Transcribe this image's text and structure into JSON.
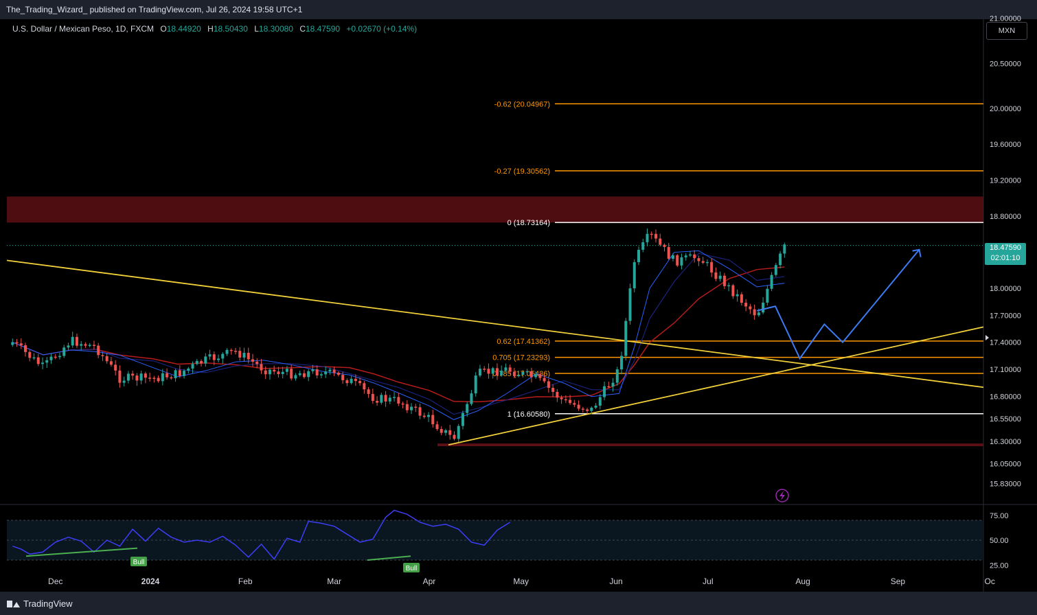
{
  "header": {
    "publish_line": "The_Trading_Wizard_ published on TradingView.com, Jul 26, 2024 19:58 UTC+1",
    "symbol": "U.S. Dollar / Mexican Peso, 1D, FXCM",
    "ohlc": {
      "O": "18.44920",
      "H": "18.50430",
      "L": "18.30080",
      "C": "18.47590",
      "change": "+0.02670 (+0.14%)"
    },
    "currency_button": "MXN"
  },
  "price_label": {
    "value": "18.47590",
    "countdown": "02:01:10"
  },
  "footer": {
    "brand": "TradingView"
  },
  "colors": {
    "up": "#26a69a",
    "down": "#ef5350",
    "fib_orange": "#ff9800",
    "fib_white": "#ffffff",
    "trendline": "#f2d13a",
    "ma_dark_blue": "#1a237e",
    "ma_blue": "#2962ff",
    "ma_red": "#b71c1c",
    "projection": "#3d7bf5",
    "rsi": "#3d3df5",
    "zone": "#5c0f14"
  },
  "chart_data": {
    "type": "candlestick",
    "title": "U.S. Dollar / Mexican Peso, 1D, FXCM",
    "ylim": [
      15.7,
      21.2
    ],
    "y_ticks": [
      "21.00000",
      "20.50000",
      "20.00000",
      "19.60000",
      "19.20000",
      "18.80000",
      "18.00000",
      "17.70000",
      "17.40000",
      "17.10000",
      "16.80000",
      "16.55000",
      "16.30000",
      "16.05000",
      "15.83000"
    ],
    "x_ticks": [
      "Dec",
      "2024",
      "Feb",
      "Mar",
      "Apr",
      "May",
      "Jun",
      "Jul",
      "Aug",
      "Sep",
      "Oc"
    ],
    "last_price": 18.4759,
    "fib_levels": [
      {
        "label": "-0.62 (20.04967)",
        "value": 20.04967
      },
      {
        "label": "-0.27 (19.30562)",
        "value": 19.30562
      },
      {
        "label": "0 (18.73164)",
        "value": 18.73164
      },
      {
        "label": "0.62 (17.41362)",
        "value": 17.41362
      },
      {
        "label": "0.705 (17.23293)",
        "value": 17.23293
      },
      {
        "label": "0.785 (17.05436)",
        "value": 17.05436
      },
      {
        "label": "1 (16.60580)",
        "value": 16.6058
      }
    ],
    "resistance_zone": [
      18.73,
      19.02
    ],
    "support_level": 16.26,
    "close_path": [
      [
        "2023-11-17",
        17.4
      ],
      [
        "2023-11-27",
        17.12
      ],
      [
        "2023-12-06",
        17.42
      ],
      [
        "2023-12-14",
        17.35
      ],
      [
        "2023-12-22",
        17.0
      ],
      [
        "2024-01-02",
        17.0
      ],
      [
        "2024-01-10",
        17.05
      ],
      [
        "2024-01-19",
        17.2
      ],
      [
        "2024-01-29",
        17.3
      ],
      [
        "2024-02-07",
        17.1
      ],
      [
        "2024-02-16",
        17.05
      ],
      [
        "2024-02-26",
        17.08
      ],
      [
        "2024-03-06",
        16.98
      ],
      [
        "2024-03-14",
        16.78
      ],
      [
        "2024-03-22",
        16.75
      ],
      [
        "2024-04-01",
        16.55
      ],
      [
        "2024-04-09",
        16.32
      ],
      [
        "2024-04-17",
        17.05
      ],
      [
        "2024-04-26",
        17.1
      ],
      [
        "2024-05-06",
        17.0
      ],
      [
        "2024-05-15",
        16.74
      ],
      [
        "2024-05-24",
        16.65
      ],
      [
        "2024-06-02",
        17.1
      ],
      [
        "2024-06-07",
        18.3
      ],
      [
        "2024-06-12",
        18.6
      ],
      [
        "2024-06-20",
        18.3
      ],
      [
        "2024-06-28",
        18.35
      ],
      [
        "2024-07-08",
        18.0
      ],
      [
        "2024-07-17",
        17.7
      ],
      [
        "2024-07-26",
        18.47
      ]
    ],
    "projection_path": [
      [
        "2024-07-17",
        17.75
      ],
      [
        "2024-07-23",
        17.8
      ],
      [
        "2024-07-31",
        17.22
      ],
      [
        "2024-08-08",
        17.6
      ],
      [
        "2024-08-14",
        17.4
      ],
      [
        "2024-09-08",
        18.43
      ]
    ],
    "rsi": {
      "levels": [
        70,
        50,
        30
      ],
      "y_ticks": [
        "75.00",
        "50.00",
        "25.00"
      ],
      "labels": [
        "Bull",
        "Bull"
      ],
      "values": [
        [
          0,
          44
        ],
        [
          2,
          41
        ],
        [
          4,
          36
        ],
        [
          7,
          38
        ],
        [
          10,
          48
        ],
        [
          13,
          53
        ],
        [
          16,
          49
        ],
        [
          19,
          38
        ],
        [
          22,
          50
        ],
        [
          25,
          44
        ],
        [
          28,
          61
        ],
        [
          31,
          49
        ],
        [
          34,
          62
        ],
        [
          37,
          53
        ],
        [
          40,
          48
        ],
        [
          43,
          50
        ],
        [
          46,
          48
        ],
        [
          49,
          54
        ],
        [
          52,
          45
        ],
        [
          55,
          33
        ],
        [
          58,
          46
        ],
        [
          61,
          31
        ],
        [
          64,
          52
        ],
        [
          67,
          48
        ],
        [
          69,
          69
        ],
        [
          72,
          67
        ],
        [
          75,
          64
        ],
        [
          78,
          56
        ],
        [
          81,
          48
        ],
        [
          84,
          51
        ],
        [
          87,
          73
        ],
        [
          89,
          80
        ],
        [
          92,
          76
        ],
        [
          95,
          68
        ],
        [
          98,
          64
        ],
        [
          101,
          66
        ],
        [
          104,
          61
        ],
        [
          107,
          48
        ],
        [
          110,
          45
        ],
        [
          113,
          60
        ],
        [
          116,
          68
        ]
      ]
    }
  }
}
